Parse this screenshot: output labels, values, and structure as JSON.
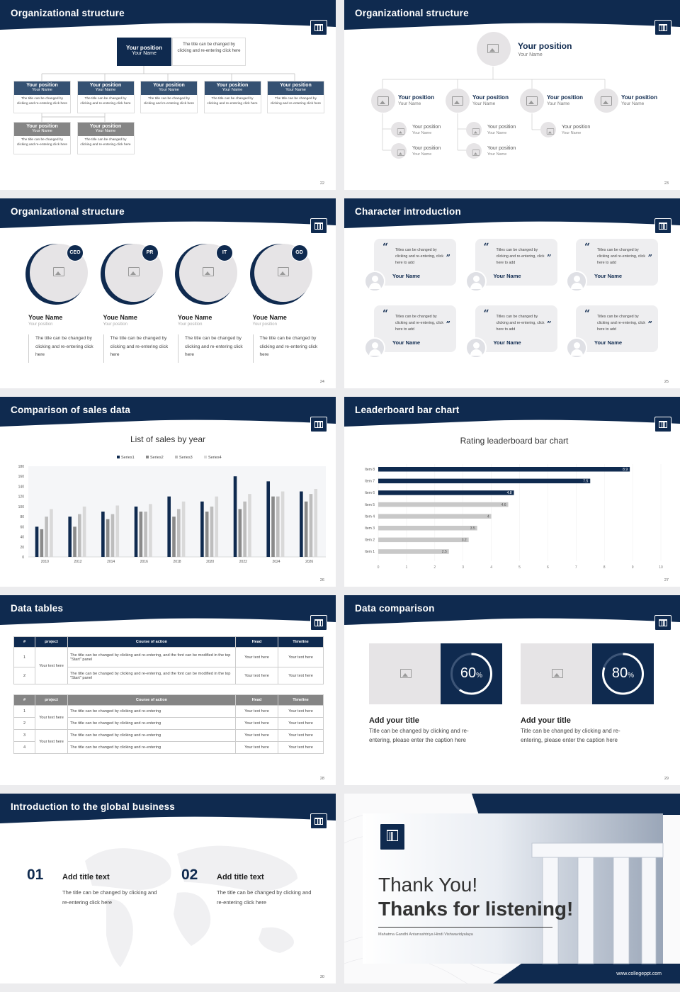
{
  "slides": {
    "s22": {
      "title": "Organizational structure",
      "num": "22",
      "top": {
        "position": "Your position",
        "name": "Your Name",
        "desc": "The title can be changed by clicking and re-entering click here"
      },
      "row1": [
        {
          "position": "Your position",
          "name": "Your Name",
          "desc": "The title can be changed by clicking and re-entering click here"
        },
        {
          "position": "Your position",
          "name": "Your Name",
          "desc": "The title can be changed by clicking and re-entering click here"
        },
        {
          "position": "Your position",
          "name": "Your Name",
          "desc": "The title can be changed by clicking and re-entering click here"
        },
        {
          "position": "Your position",
          "name": "Your Name",
          "desc": "The title can be changed by clicking and re-entering click here"
        },
        {
          "position": "Your position",
          "name": "Your Name",
          "desc": "The title can be changed by clicking and re-entering click here"
        }
      ],
      "row2": [
        {
          "position": "Your position",
          "name": "Your Name",
          "desc": "The title can be changed by clicking and re-entering click here"
        },
        {
          "position": "Your position",
          "name": "Your Name",
          "desc": "The title can be changed by clicking and re-entering click here"
        }
      ]
    },
    "s23": {
      "title": "Organizational structure",
      "num": "23",
      "top": {
        "position": "Your position",
        "name": "Your Name"
      },
      "row": [
        {
          "position": "Your position",
          "name": "Your Name"
        },
        {
          "position": "Your position",
          "name": "Your Name"
        },
        {
          "position": "Your position",
          "name": "Your Name"
        },
        {
          "position": "Your position",
          "name": "Your Name"
        }
      ],
      "subs": [
        {
          "position": "Your position",
          "name": "Your Name"
        },
        {
          "position": "Your position",
          "name": "Your Name"
        },
        {
          "position": "Your position",
          "name": "Your Name"
        },
        {
          "position": "Your position",
          "name": "Your Name"
        },
        {
          "position": "Your position",
          "name": "Your Name"
        }
      ]
    },
    "s24": {
      "title": "Organizational structure",
      "num": "24",
      "people": [
        {
          "badge": "CEO",
          "name": "Youe Name",
          "position": "Your position",
          "desc": "The title can be changed by clicking and re-entering click here"
        },
        {
          "badge": "PR",
          "name": "Youe Name",
          "position": "Your position",
          "desc": "The title can be changed by clicking and re-entering click here"
        },
        {
          "badge": "IT",
          "name": "Youe Name",
          "position": "Your position",
          "desc": "The title can be changed by clicking and re-entering click here"
        },
        {
          "badge": "GD",
          "name": "Youe Name",
          "position": "Your position",
          "desc": "The title can be changed by clicking and re-entering click here"
        }
      ]
    },
    "s25": {
      "title": "Character introduction",
      "num": "25",
      "cards": [
        {
          "text": "Titles can be changed by clicking and re-entering, click here to add",
          "name": "Your Name"
        },
        {
          "text": "Titles can be changed by clicking and re-entering, click here to add",
          "name": "Your Name"
        },
        {
          "text": "Titles can be changed by clicking and re-entering, click here to add",
          "name": "Your Name"
        },
        {
          "text": "Titles can be changed by clicking and re-entering, click here to add",
          "name": "Your Name"
        },
        {
          "text": "Titles can be changed by clicking and re-entering, click here to add",
          "name": "Your Name"
        },
        {
          "text": "Titles can be changed by clicking and re-entering, click here to add",
          "name": "Your Name"
        }
      ]
    },
    "s26": {
      "title": "Comparison of sales data",
      "num": "26"
    },
    "s27": {
      "title": "Leaderboard bar chart",
      "num": "27"
    },
    "s28": {
      "title": "Data tables",
      "num": "28",
      "t1": {
        "headers": [
          "#",
          "project",
          "Course of action",
          "Head",
          "Timeline"
        ],
        "group": "Your text here",
        "rows": [
          {
            "n": "1",
            "action": "The title can be changed by clicking and re-entering, and the font can be modified in the top \"Start\" panel",
            "head": "Your text here",
            "time": "Your text here"
          },
          {
            "n": "2",
            "action": "The title can be changed by clicking and re-entering, and the font can be modified in the top \"Start\" panel",
            "head": "Your text here",
            "time": "Your text here"
          }
        ]
      },
      "t2": {
        "headers": [
          "#",
          "project",
          "Course of action",
          "Head",
          "Timeline"
        ],
        "groups": [
          "Your text here",
          "Your text here"
        ],
        "rows": [
          {
            "n": "1",
            "action": "The title can be changed by clicking and re-entering",
            "head": "Your text here",
            "time": "Your text here"
          },
          {
            "n": "2",
            "action": "The title can be changed by clicking and re-entering",
            "head": "Your text here",
            "time": "Your text here"
          },
          {
            "n": "3",
            "action": "The title can be changed by clicking and re-entering",
            "head": "Your text here",
            "time": "Your text here"
          },
          {
            "n": "4",
            "action": "The title can be changed by clicking and re-entering",
            "head": "Your text here",
            "time": "Your text here"
          }
        ]
      }
    },
    "s29": {
      "title": "Data comparison",
      "num": "29",
      "items": [
        {
          "pct": "60",
          "unit": "%",
          "value": 60,
          "title": "Add your title",
          "desc": "Title can be changed by clicking and re-entering, please enter the caption here"
        },
        {
          "pct": "80",
          "unit": "%",
          "value": 80,
          "title": "Add your title",
          "desc": "Title can be changed by clicking and re-entering, please enter the caption here"
        }
      ]
    },
    "s30": {
      "title": "Introduction to the global business",
      "num": "30",
      "items": [
        {
          "n": "01",
          "title": "Add title text",
          "desc": "The title can be changed by clicking and re-entering click here"
        },
        {
          "n": "02",
          "title": "Add title text",
          "desc": "The title can be changed by clicking and re-entering click here"
        }
      ]
    },
    "s31": {
      "thanks1": "Thank You!",
      "thanks2": "Thanks for listening!",
      "university": "Mahatma Gandhi Antarrashtriya Hindi Vishwavidyalaya",
      "url": "www.collegeppt.com"
    }
  },
  "chart_data": [
    {
      "type": "bar",
      "title": "List of sales by year",
      "categories": [
        "2010",
        "2012",
        "2014",
        "2016",
        "2018",
        "2020",
        "2022",
        "2024",
        "2026"
      ],
      "series": [
        {
          "name": "Series1",
          "values": [
            60,
            80,
            90,
            100,
            120,
            110,
            160,
            150,
            130
          ]
        },
        {
          "name": "Series2",
          "values": [
            55,
            60,
            75,
            90,
            80,
            90,
            95,
            120,
            110
          ]
        },
        {
          "name": "Series3",
          "values": [
            80,
            85,
            85,
            90,
            95,
            100,
            110,
            120,
            125
          ]
        },
        {
          "name": "Series4",
          "values": [
            95,
            100,
            102,
            105,
            110,
            120,
            125,
            130,
            135
          ]
        }
      ],
      "ylim": [
        0,
        180
      ],
      "yticks": [
        0,
        20,
        40,
        60,
        80,
        100,
        120,
        140,
        160,
        180
      ],
      "legend": "top",
      "colors": [
        "#0f2a4f",
        "#8a8a8a",
        "#bdbdbd",
        "#d9d9d9"
      ]
    },
    {
      "type": "bar",
      "orientation": "horizontal",
      "title": "Rating leaderboard bar chart",
      "categories": [
        "Item 8",
        "Item 7",
        "Item 6",
        "Item 5",
        "Item 4",
        "Item 3",
        "Item 2",
        "Item 1"
      ],
      "values": [
        8.9,
        7.5,
        4.8,
        4.6,
        4,
        3.5,
        3.2,
        2.5
      ],
      "xlim": [
        0,
        10
      ],
      "xticks": [
        0,
        1,
        2,
        3,
        4,
        5,
        6,
        7,
        8,
        9,
        10
      ],
      "highlight_colors": [
        "#0f2a4f",
        "#0f2a4f",
        "#0f2a4f",
        "#c8c8c8",
        "#c8c8c8",
        "#c8c8c8",
        "#c8c8c8",
        "#c8c8c8"
      ]
    }
  ]
}
